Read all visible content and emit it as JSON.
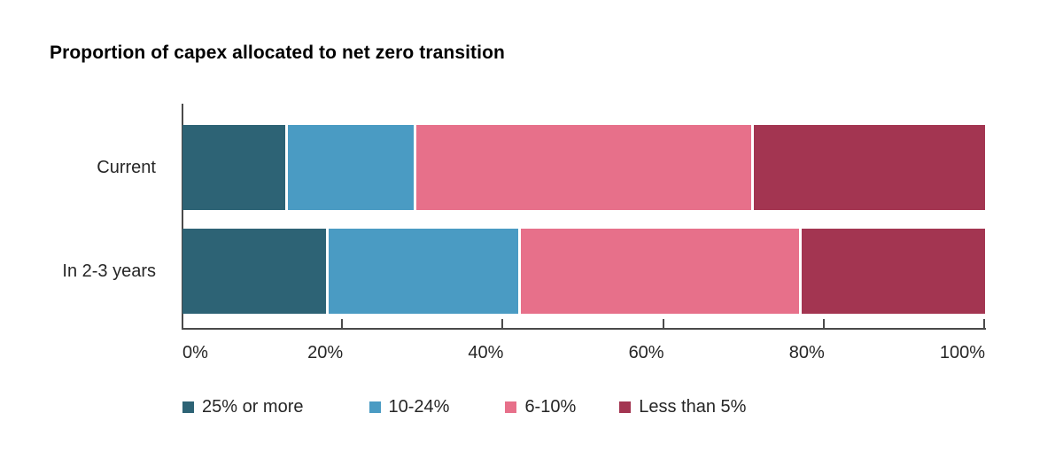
{
  "chart_data": {
    "type": "bar",
    "variant": "stacked-horizontal",
    "title": "Proportion of capex allocated to net zero transition",
    "categories": [
      "Current",
      "In 2-3 years"
    ],
    "series": [
      {
        "name": "25% or more",
        "color": "#2D6375",
        "values": [
          13,
          18
        ]
      },
      {
        "name": "10-24%",
        "color": "#4A9BC3",
        "values": [
          16,
          24
        ]
      },
      {
        "name": "6-10%",
        "color": "#E7708A",
        "values": [
          42,
          35
        ]
      },
      {
        "name": "Less than 5%",
        "color": "#A33551",
        "values": [
          29,
          23
        ]
      }
    ],
    "units": "%",
    "x_axis": {
      "min": 0,
      "max": 100,
      "tick_values": [
        0,
        20,
        40,
        60,
        80,
        100
      ],
      "tick_labels": [
        "0%",
        "20%",
        "40%",
        "60%",
        "80%",
        "100%"
      ]
    },
    "grid": false,
    "legend_position": "bottom",
    "legend": [
      "25% or more",
      "10-24%",
      "6-10%",
      "Less than 5%"
    ],
    "axis_color": "#4A4A4A",
    "text_color": "#262626",
    "background_color": "#FFFFFF"
  }
}
